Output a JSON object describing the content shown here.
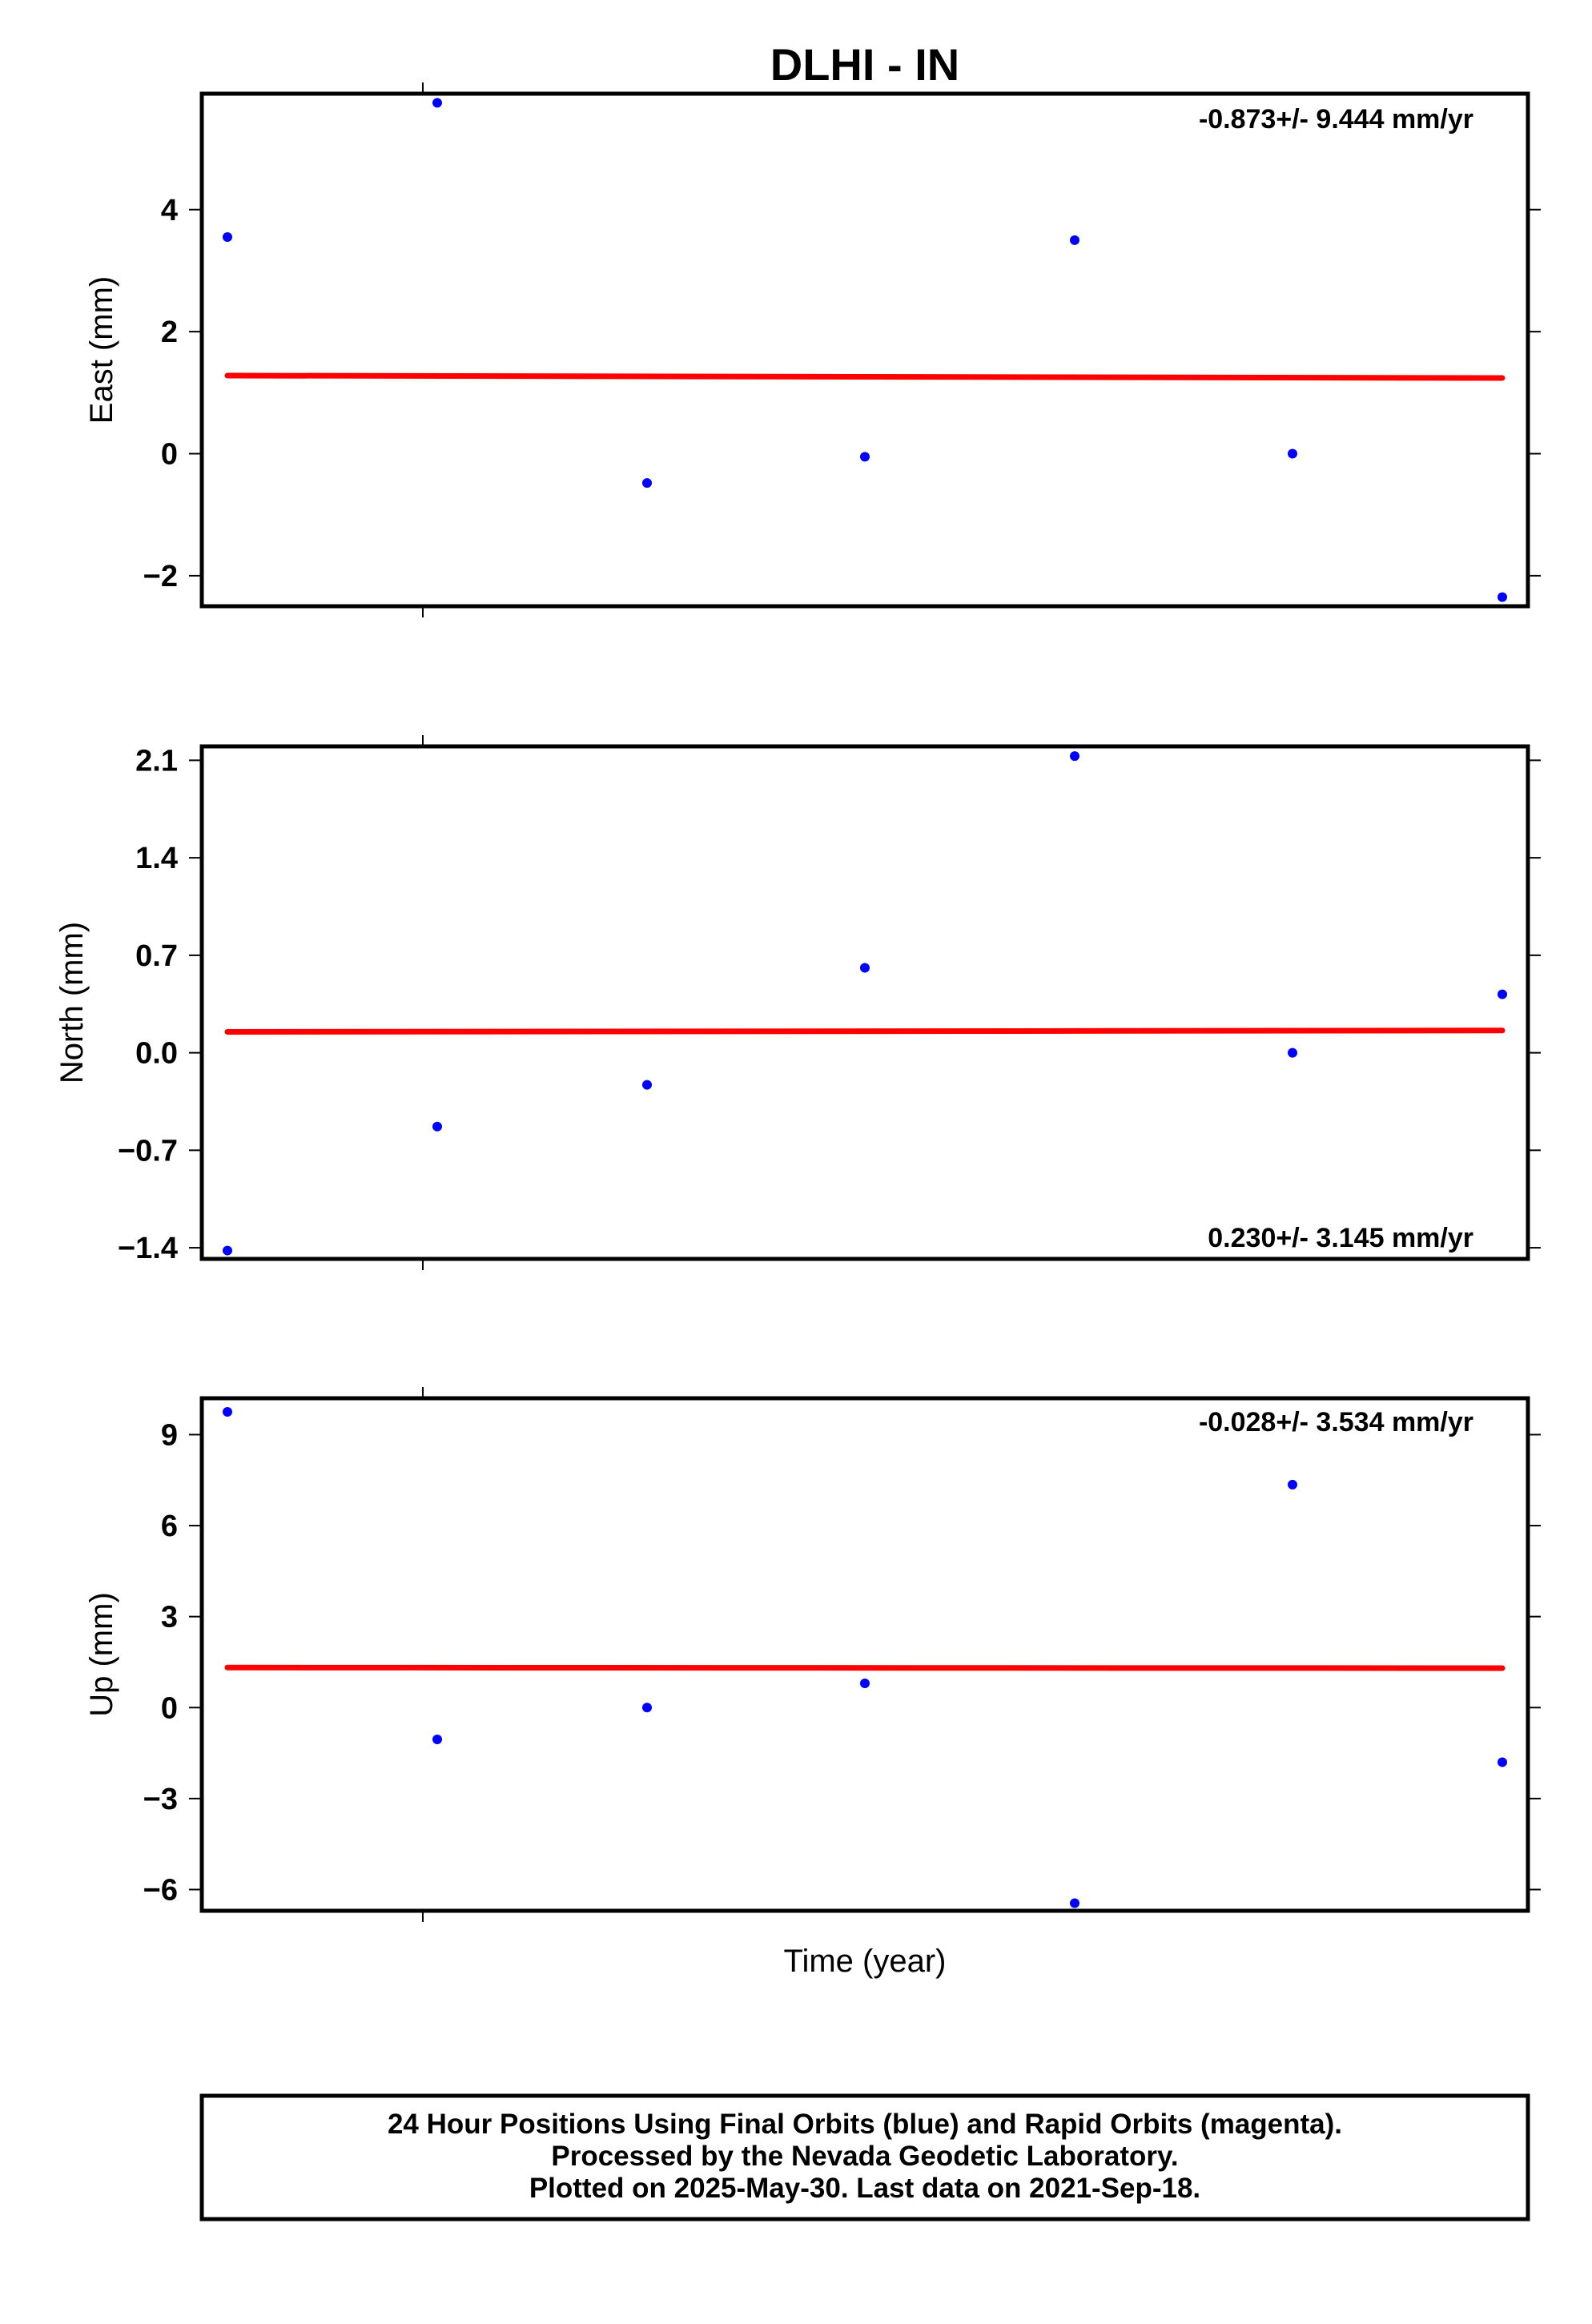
{
  "title": "DLHI - IN",
  "xlabel": "Time (year)",
  "footer": {
    "line1": "24 Hour Positions Using Final Orbits (blue) and Rapid Orbits (magenta).",
    "line2": "Processed by the Nevada Geodetic Laboratory.",
    "line3": "Plotted on 2025-May-30. Last data on 2021-Sep-18."
  },
  "colors": {
    "points": "#0000ff",
    "trend": "#ff0000",
    "frame": "#000000"
  },
  "chart_data": [
    {
      "type": "scatter",
      "ylabel": "East (mm)",
      "rate": "-0.873+/- 9.444 mm/yr",
      "rate_position": "top-right",
      "ylim": [
        -2.5,
        5.9
      ],
      "yticks": [
        -2,
        0,
        2,
        4
      ],
      "tick_labels": [
        "−2",
        "0",
        "2",
        "4"
      ],
      "points": [
        3.55,
        5.75,
        -0.48,
        -0.05,
        3.5,
        0.0,
        -2.35
      ],
      "trend": [
        1.28,
        1.24
      ]
    },
    {
      "type": "scatter",
      "ylabel": "North (mm)",
      "rate": "0.230+/- 3.145 mm/yr",
      "rate_position": "bottom-right",
      "ylim": [
        -1.48,
        2.2
      ],
      "yticks": [
        -1.4,
        -0.7,
        0.0,
        0.7,
        1.4,
        2.1
      ],
      "tick_labels": [
        "−1.4",
        "−0.7",
        "0.0",
        "0.7",
        "1.4",
        "2.1"
      ],
      "points": [
        -1.42,
        -0.53,
        -0.23,
        0.61,
        2.13,
        0.0,
        0.42
      ],
      "trend": [
        0.15,
        0.16
      ]
    },
    {
      "type": "scatter",
      "ylabel": "Up (mm)",
      "rate": "-0.028+/- 3.534 mm/yr",
      "rate_position": "top-right",
      "ylim": [
        -6.7,
        10.2
      ],
      "yticks": [
        -6,
        -3,
        0,
        3,
        6,
        9
      ],
      "tick_labels": [
        "−6",
        "−3",
        "0",
        "3",
        "6",
        "9"
      ],
      "points": [
        9.75,
        -1.05,
        0.0,
        0.8,
        -6.45,
        7.35,
        -1.8
      ],
      "trend": [
        1.32,
        1.3
      ]
    }
  ]
}
